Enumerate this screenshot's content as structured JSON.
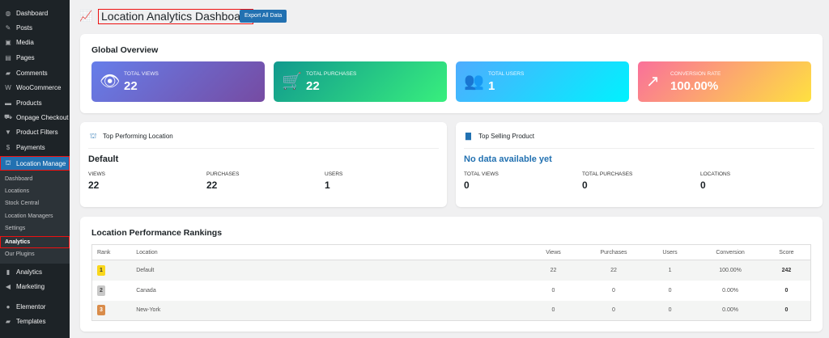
{
  "sidebar": {
    "items": [
      {
        "label": "Dashboard",
        "icon": "dashboard-icon",
        "glyph": "◍"
      },
      {
        "label": "Posts",
        "icon": "pin-icon",
        "glyph": "✎"
      },
      {
        "label": "Media",
        "icon": "media-icon",
        "glyph": "▣"
      },
      {
        "label": "Pages",
        "icon": "pages-icon",
        "glyph": "▤"
      },
      {
        "label": "Comments",
        "icon": "comment-icon",
        "glyph": "▰"
      },
      {
        "label": "WooCommerce",
        "icon": "woocommerce-icon",
        "glyph": "W"
      },
      {
        "label": "Products",
        "icon": "archive-icon",
        "glyph": "▬"
      },
      {
        "label": "Onpage Checkout",
        "icon": "cart-icon",
        "glyph": "⛟"
      },
      {
        "label": "Product Filters",
        "icon": "filter-icon",
        "glyph": "▼"
      },
      {
        "label": "Payments",
        "icon": "payments-icon",
        "glyph": "$"
      },
      {
        "label": "Location Manage",
        "icon": "location-icon",
        "glyph": "⛫"
      }
    ],
    "submenu": [
      "Dashboard",
      "Locations",
      "Stock Central",
      "Location Managers",
      "Settings",
      "Analytics",
      "Our Plugins"
    ],
    "bottom": [
      {
        "label": "Analytics",
        "icon": "bar-chart-icon",
        "glyph": "▮"
      },
      {
        "label": "Marketing",
        "icon": "megaphone-icon",
        "glyph": "◀"
      },
      {
        "label": "Elementor",
        "icon": "elementor-icon",
        "glyph": "●"
      },
      {
        "label": "Templates",
        "icon": "folder-icon",
        "glyph": "▰"
      }
    ]
  },
  "header": {
    "title": "Location Analytics Dashboard",
    "export_label": "Export All Data"
  },
  "overview": {
    "title": "Global Overview",
    "stats": [
      {
        "label": "Total Views",
        "value": "22",
        "icon": "eye-icon",
        "glyph": "👁",
        "gradient": [
          "#667eea",
          "#764ba2"
        ]
      },
      {
        "label": "Total Purchases",
        "value": "22",
        "icon": "cart-icon",
        "glyph": "🛒",
        "gradient": [
          "#11998e",
          "#38ef7d"
        ]
      },
      {
        "label": "Total Users",
        "value": "1",
        "icon": "users-icon",
        "glyph": "👥",
        "gradient": [
          "#4facfe",
          "#00f2fe"
        ]
      },
      {
        "label": "Conversion Rate",
        "value": "100.00%",
        "icon": "chart-up-icon",
        "glyph": "↗",
        "gradient": [
          "#fa709a",
          "#fee140"
        ]
      }
    ]
  },
  "top_location": {
    "title": "Top Performing Location",
    "name": "Default",
    "metrics": [
      {
        "label": "Views",
        "value": "22"
      },
      {
        "label": "Purchases",
        "value": "22"
      },
      {
        "label": "Users",
        "value": "1"
      }
    ]
  },
  "top_product": {
    "title": "Top Selling Product",
    "name": "No data available yet",
    "metrics": [
      {
        "label": "Total Views",
        "value": "0"
      },
      {
        "label": "Total Purchases",
        "value": "0"
      },
      {
        "label": "Locations",
        "value": "0"
      }
    ]
  },
  "rankings": {
    "title": "Location Performance Rankings",
    "columns": [
      "Rank",
      "Location",
      "Views",
      "Purchases",
      "Users",
      "Conversion",
      "Score"
    ],
    "rows": [
      {
        "rank": "1",
        "location": "Default",
        "views": "22",
        "purchases": "22",
        "users": "1",
        "conversion": "100.00%",
        "score": "242",
        "badge": "#f9d71c"
      },
      {
        "rank": "2",
        "location": "Canada",
        "views": "0",
        "purchases": "0",
        "users": "0",
        "conversion": "0.00%",
        "score": "0",
        "badge": "#c8c8c8"
      },
      {
        "rank": "3",
        "location": "New-York",
        "views": "0",
        "purchases": "0",
        "users": "0",
        "conversion": "0.00%",
        "score": "0",
        "badge": "#d98c4a"
      }
    ]
  }
}
